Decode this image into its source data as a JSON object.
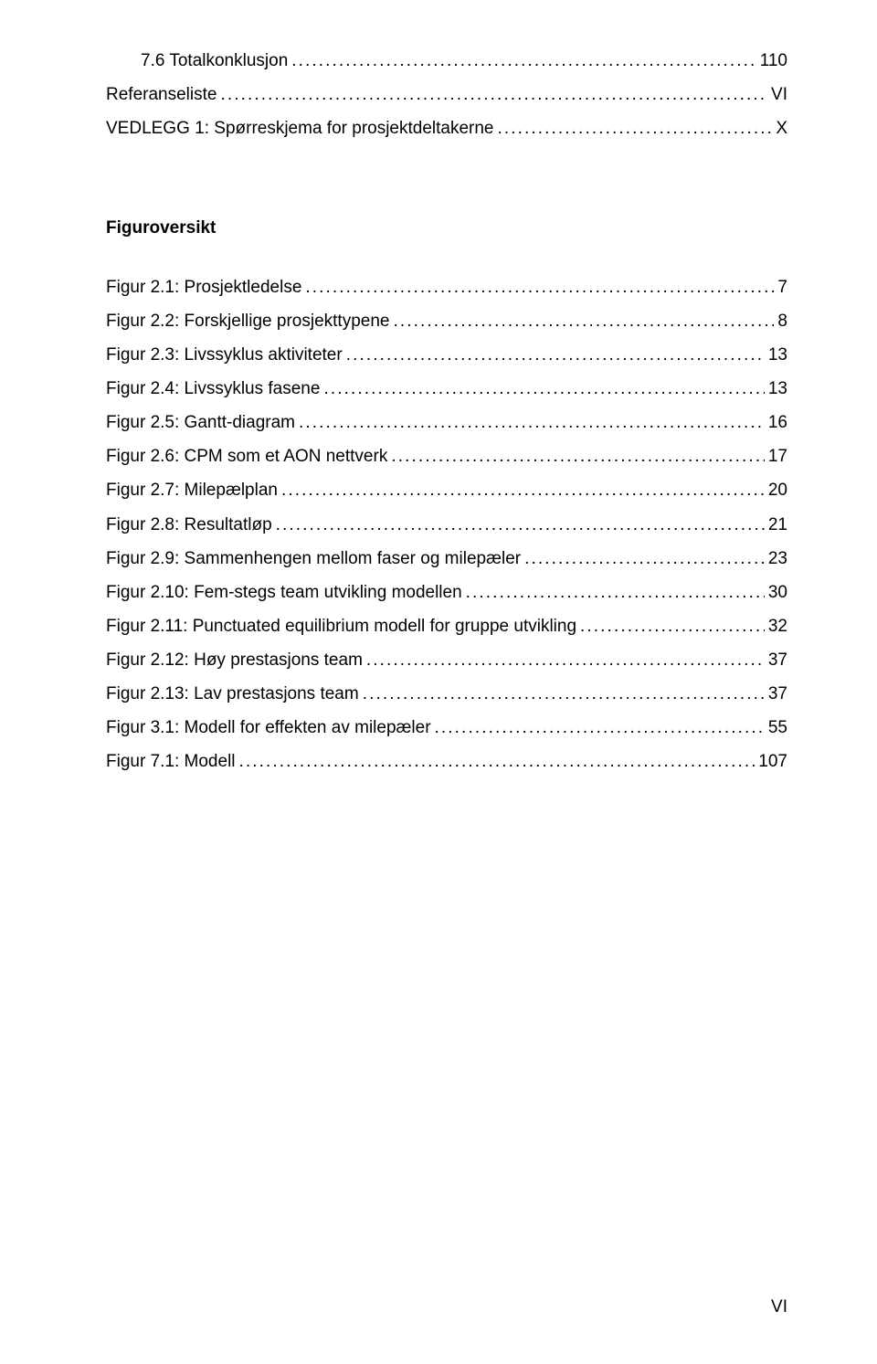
{
  "toc_top": [
    {
      "label": "7.6   Totalkonklusjon",
      "page": "110",
      "indent": true
    },
    {
      "label": "Referanseliste",
      "page": "VI",
      "indent": false
    },
    {
      "label": "VEDLEGG 1: Spørreskjema for prosjektdeltakerne",
      "page": "X",
      "indent": false
    }
  ],
  "figur_heading": "Figuroversikt",
  "figur_list": [
    {
      "label": "Figur 2.1: Prosjektledelse",
      "page": "7"
    },
    {
      "label": "Figur 2.2: Forskjellige prosjekttypene",
      "page": "8"
    },
    {
      "label": "Figur 2.3: Livssyklus aktiviteter",
      "page": "13"
    },
    {
      "label": "Figur 2.4: Livssyklus fasene",
      "page": "13"
    },
    {
      "label": "Figur 2.5: Gantt-diagram",
      "page": "16"
    },
    {
      "label": "Figur 2.6: CPM som et AON nettverk",
      "page": "17"
    },
    {
      "label": "Figur 2.7: Milepælplan",
      "page": "20"
    },
    {
      "label": "Figur 2.8: Resultatløp",
      "page": "21"
    },
    {
      "label": "Figur 2.9: Sammenhengen mellom faser og milepæler",
      "page": "23"
    },
    {
      "label": "Figur 2.10: Fem-stegs team utvikling modellen",
      "page": "30"
    },
    {
      "label": "Figur 2.11: Punctuated equilibrium modell for gruppe utvikling",
      "page": "32"
    },
    {
      "label": "Figur 2.12: Høy prestasjons team",
      "page": "37"
    },
    {
      "label": "Figur 2.13: Lav prestasjons team",
      "page": "37"
    },
    {
      "label": "Figur 3.1: Modell for effekten av milepæler",
      "page": "55"
    },
    {
      "label": "Figur 7.1: Modell",
      "page": "107"
    }
  ],
  "page_number": "VI"
}
